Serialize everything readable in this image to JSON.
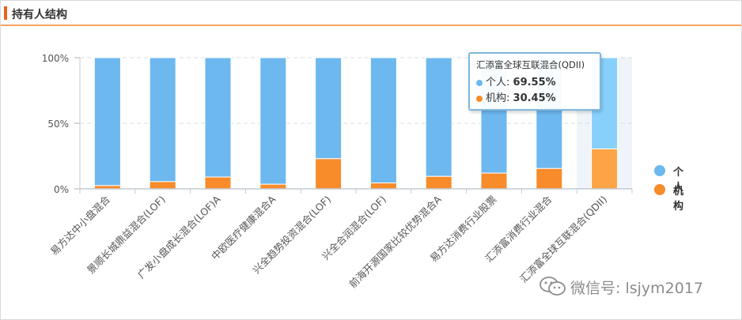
{
  "header": {
    "title": "持有人结构"
  },
  "chart_data": {
    "type": "bar",
    "stacked": true,
    "categories": [
      "易方达中小盘混合",
      "景顺长城鼎益混合(LOF)",
      "广发小盘成长混合(LOF)A",
      "中欧医疗健康混合A",
      "兴全趋势投资混合(LOF)",
      "兴全合润混合(LOF)",
      "前海开源国家比较优势混合A",
      "易方达消费行业股票",
      "汇添富消费行业混合",
      "汇添富全球互联混合(QDII)"
    ],
    "series": [
      {
        "name": "个人",
        "color": "#6cb8ef",
        "values": [
          97.5,
          94.5,
          91.0,
          96.5,
          77.0,
          95.5,
          90.5,
          88.0,
          84.5,
          69.55
        ]
      },
      {
        "name": "机构",
        "color": "#f88b2a",
        "values": [
          2.5,
          5.5,
          9.0,
          3.5,
          23.0,
          4.5,
          9.5,
          12.0,
          15.5,
          30.45
        ]
      }
    ],
    "yticks": [
      "0%",
      "50%",
      "100%"
    ],
    "ylim": [
      0,
      100
    ],
    "highlighted_index": 9,
    "legend_position": "right",
    "grid": true
  },
  "tooltip": {
    "title": "汇添富全球互联混合(QDII)",
    "rows": [
      {
        "name": "个人",
        "value": "69.55%"
      },
      {
        "name": "机构",
        "value": "30.45%"
      }
    ]
  },
  "legend": [
    {
      "label": "个人",
      "color": "#6cb8ef"
    },
    {
      "label": "机构",
      "color": "#f88b2a"
    }
  ],
  "watermark": {
    "text": "微信号: lsjym2017"
  }
}
